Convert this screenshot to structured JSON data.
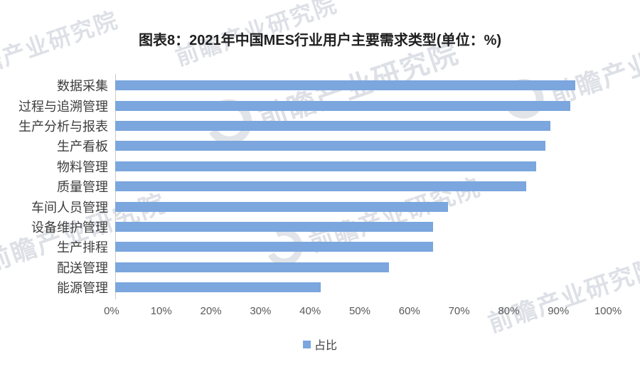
{
  "title": "图表8：2021年中国MES行业用户主要需求类型(单位：%)",
  "legend": {
    "label": "占比"
  },
  "watermark": {
    "text": "前瞻产业研究院"
  },
  "colors": {
    "bar": "#7BA6DE",
    "axis_line": "#c9c9c9",
    "title_text": "#1f1f1f",
    "category_text": "#3d3d3d",
    "tick_text": "#595959"
  },
  "chart_data": {
    "type": "bar",
    "orientation": "horizontal",
    "title": "图表8：2021年中国MES行业用户主要需求类型(单位：%)",
    "unit": "%",
    "categories": [
      "数据采集",
      "过程与追溯管理",
      "生产分析与报表",
      "生产看板",
      "物料管理",
      "质量管理",
      "车间人员管理",
      "设备维护管理",
      "生产排程",
      "配送管理",
      "能源管理"
    ],
    "values": [
      94,
      93,
      89,
      88,
      86,
      84,
      68,
      65,
      65,
      56,
      42
    ],
    "x_ticks": [
      "0%",
      "10%",
      "20%",
      "30%",
      "40%",
      "50%",
      "60%",
      "70%",
      "80%",
      "90%",
      "100%"
    ],
    "xlim": [
      0,
      100
    ],
    "grid": false,
    "legend_entries": [
      "占比"
    ],
    "legend_position": "bottom",
    "bar_color": "#7BA6DE"
  }
}
